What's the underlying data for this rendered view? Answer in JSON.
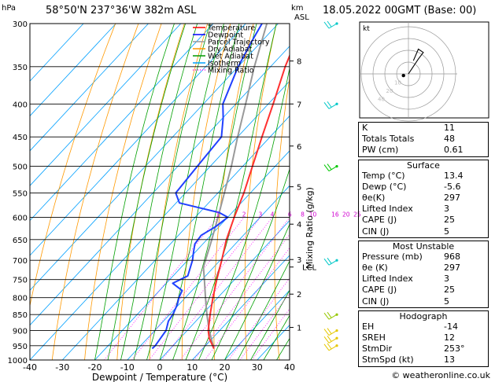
{
  "header": {
    "pressure_unit": "hPa",
    "location": "58°50'N  237°36'W  382m  ASL",
    "height_unit": "km",
    "height_unit_sub": "ASL",
    "datetime": "18.05.2022  00GMT  (Base: 00)"
  },
  "chart_data": {
    "type": "line",
    "xlabel": "Dewpoint / Temperature (°C)",
    "ylabel_right": "Mixing Ratio (g/kg)",
    "x_ticks": [
      -40,
      -30,
      -20,
      -10,
      0,
      10,
      20,
      30,
      40
    ],
    "x_tick_labels": [
      "-40",
      "-30",
      "-20",
      "-10",
      "0",
      "10",
      "20",
      "30",
      "40"
    ],
    "y_ticks": [
      300,
      350,
      400,
      450,
      500,
      550,
      600,
      650,
      700,
      750,
      800,
      850,
      900,
      950,
      1000
    ],
    "y_tick_labels": [
      "300",
      "350",
      "400",
      "450",
      "500",
      "550",
      "600",
      "650",
      "700",
      "750",
      "800",
      "850",
      "900",
      "950",
      "1000"
    ],
    "km_ticks": [
      {
        "p": 343,
        "label": "8"
      },
      {
        "p": 400,
        "label": "7"
      },
      {
        "p": 465,
        "label": "6"
      },
      {
        "p": 538,
        "label": "5"
      },
      {
        "p": 615,
        "label": "4"
      },
      {
        "p": 698,
        "label": "3"
      },
      {
        "p": 790,
        "label": "2"
      },
      {
        "p": 890,
        "label": "1"
      }
    ],
    "lcl": {
      "p": 717,
      "label": "LCL"
    },
    "mixing_ratio_labels": [
      "1",
      "2",
      "3",
      "4",
      "6",
      "8",
      "10",
      "16",
      "20",
      "25"
    ],
    "mixing_ratio_values": [
      1,
      2,
      3,
      4,
      6,
      8,
      10,
      16,
      20,
      25
    ],
    "legend": [
      {
        "name": "Temperature",
        "color": "#ff0000",
        "style": "solid"
      },
      {
        "name": "Dewpoint",
        "color": "#0000ff",
        "style": "solid"
      },
      {
        "name": "Parcel Trajectory",
        "color": "#999999",
        "style": "solid"
      },
      {
        "name": "Dry Adiabat",
        "color": "#ff9900",
        "style": "solid"
      },
      {
        "name": "Wet Adiabat",
        "color": "#009900",
        "style": "solid"
      },
      {
        "name": "Isotherm",
        "color": "#00a0ff",
        "style": "solid"
      },
      {
        "name": "Mixing Ratio",
        "color": "#ff00ff",
        "style": "dotted"
      }
    ],
    "temperature": [
      {
        "p": 960,
        "t": 13.4
      },
      {
        "p": 925,
        "t": 9.0
      },
      {
        "p": 900,
        "t": 6.5
      },
      {
        "p": 850,
        "t": 2.5
      },
      {
        "p": 800,
        "t": -1.5
      },
      {
        "p": 750,
        "t": -5.5
      },
      {
        "p": 700,
        "t": -9.5
      },
      {
        "p": 650,
        "t": -14.0
      },
      {
        "p": 600,
        "t": -18.0
      },
      {
        "p": 550,
        "t": -22.0
      },
      {
        "p": 500,
        "t": -27.0
      },
      {
        "p": 450,
        "t": -32.5
      },
      {
        "p": 400,
        "t": -38.5
      },
      {
        "p": 350,
        "t": -45.5
      },
      {
        "p": 320,
        "t": -49.5
      },
      {
        "p": 300,
        "t": -52.0
      }
    ],
    "dewpoint": [
      {
        "p": 960,
        "t": -5.6
      },
      {
        "p": 950,
        "t": -5.5
      },
      {
        "p": 925,
        "t": -6.0
      },
      {
        "p": 900,
        "t": -6.5
      },
      {
        "p": 870,
        "t": -8.5
      },
      {
        "p": 850,
        "t": -9.0
      },
      {
        "p": 820,
        "t": -10.5
      },
      {
        "p": 800,
        "t": -12.0
      },
      {
        "p": 780,
        "t": -13.0
      },
      {
        "p": 760,
        "t": -18.0
      },
      {
        "p": 740,
        "t": -15.5
      },
      {
        "p": 700,
        "t": -18.5
      },
      {
        "p": 680,
        "t": -20.5
      },
      {
        "p": 660,
        "t": -22.5
      },
      {
        "p": 640,
        "t": -23.0
      },
      {
        "p": 620,
        "t": -21.0
      },
      {
        "p": 600,
        "t": -20.0
      },
      {
        "p": 590,
        "t": -24.0
      },
      {
        "p": 570,
        "t": -39.0
      },
      {
        "p": 550,
        "t": -43.0
      },
      {
        "p": 500,
        "t": -44.0
      },
      {
        "p": 450,
        "t": -45.0
      },
      {
        "p": 420,
        "t": -50.0
      },
      {
        "p": 400,
        "t": -54.0
      },
      {
        "p": 350,
        "t": -60.0
      },
      {
        "p": 320,
        "t": -63.0
      },
      {
        "p": 300,
        "t": -65.0
      }
    ],
    "parcel": [
      {
        "p": 960,
        "t": 13.4
      },
      {
        "p": 900,
        "t": 6.8
      },
      {
        "p": 850,
        "t": 1.5
      },
      {
        "p": 800,
        "t": -3.8
      },
      {
        "p": 750,
        "t": -9.3
      },
      {
        "p": 717,
        "t": -13.2
      },
      {
        "p": 700,
        "t": -14.5
      },
      {
        "p": 650,
        "t": -18.5
      },
      {
        "p": 600,
        "t": -23.0
      },
      {
        "p": 550,
        "t": -28.0
      },
      {
        "p": 500,
        "t": -33.5
      },
      {
        "p": 450,
        "t": -40.0
      },
      {
        "p": 400,
        "t": -47.0
      },
      {
        "p": 350,
        "t": -55.0
      },
      {
        "p": 300,
        "t": -63.5
      }
    ],
    "wind_barbs": [
      {
        "p": 300,
        "color": "#00c8c8"
      },
      {
        "p": 400,
        "color": "#00c8c8"
      },
      {
        "p": 500,
        "color": "#00c800"
      },
      {
        "p": 700,
        "color": "#00c8c8"
      },
      {
        "p": 850,
        "color": "#96c800"
      },
      {
        "p": 900,
        "color": "#e6c800"
      },
      {
        "p": 925,
        "color": "#e6c800"
      },
      {
        "p": 950,
        "color": "#e6c800"
      }
    ]
  },
  "hodograph": {
    "unit_label": "kt",
    "ring_labels": [
      "10",
      "20",
      "40"
    ],
    "trace": [
      {
        "u": 0,
        "v": 0
      },
      {
        "u": 2,
        "v": 3
      },
      {
        "u": 6,
        "v": 9
      },
      {
        "u": 9,
        "v": 13
      },
      {
        "u": 6,
        "v": 15
      },
      {
        "u": 3,
        "v": 8
      }
    ],
    "storm_motion": {
      "u": -3,
      "v": -1
    }
  },
  "indices": {
    "top": [
      {
        "label": "K",
        "value": "11"
      },
      {
        "label": "Totals Totals",
        "value": "48"
      },
      {
        "label": "PW (cm)",
        "value": "0.61"
      }
    ],
    "surface": {
      "title": "Surface",
      "rows": [
        {
          "label": "Temp (°C)",
          "value": "13.4"
        },
        {
          "label": "Dewp (°C)",
          "value": "-5.6"
        },
        {
          "label": "θe(K)",
          "value": "297"
        },
        {
          "label": "Lifted Index",
          "value": "3"
        },
        {
          "label": "CAPE (J)",
          "value": "25"
        },
        {
          "label": "CIN (J)",
          "value": "5"
        }
      ]
    },
    "unstable": {
      "title": "Most Unstable",
      "rows": [
        {
          "label": "Pressure (mb)",
          "value": "968"
        },
        {
          "label": "θe (K)",
          "value": "297"
        },
        {
          "label": "Lifted Index",
          "value": "3"
        },
        {
          "label": "CAPE (J)",
          "value": "25"
        },
        {
          "label": "CIN (J)",
          "value": "5"
        }
      ]
    },
    "hodo": {
      "title": "Hodograph",
      "rows": [
        {
          "label": "EH",
          "value": "-14"
        },
        {
          "label": "SREH",
          "value": "12"
        },
        {
          "label": "StmDir",
          "value": "253°"
        },
        {
          "label": "StmSpd (kt)",
          "value": "13"
        }
      ]
    }
  },
  "credit": "© weatheronline.co.uk"
}
